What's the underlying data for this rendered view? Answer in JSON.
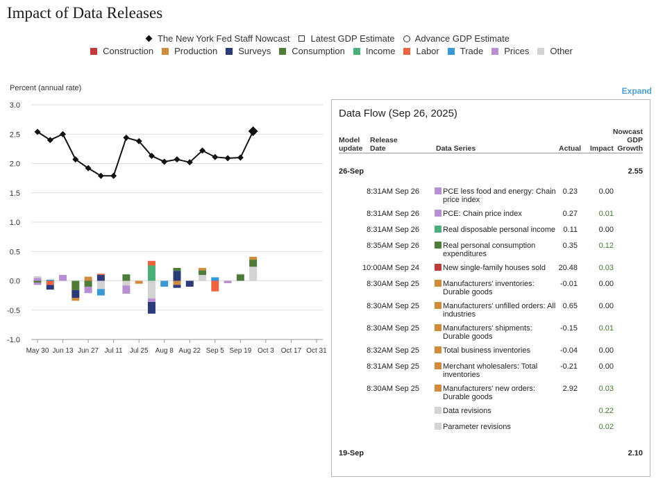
{
  "title": "Impact of Data Releases",
  "legend_markers": [
    {
      "label": "The New York Fed Staff Nowcast",
      "marker": "diamond"
    },
    {
      "label": "Latest GDP Estimate",
      "marker": "square"
    },
    {
      "label": "Advance GDP Estimate",
      "marker": "circle"
    }
  ],
  "categories": [
    {
      "label": "Construction",
      "color": "#c0393b"
    },
    {
      "label": "Production",
      "color": "#d08b3f"
    },
    {
      "label": "Surveys",
      "color": "#2b3b7a"
    },
    {
      "label": "Consumption",
      "color": "#4e7c3a"
    },
    {
      "label": "Income",
      "color": "#4cae7a"
    },
    {
      "label": "Labor",
      "color": "#ef6440"
    },
    {
      "label": "Trade",
      "color": "#3a98d6"
    },
    {
      "label": "Prices",
      "color": "#b98fd3"
    },
    {
      "label": "Other",
      "color": "#d3d3d3"
    }
  ],
  "y_axis_label": "Percent (annual rate)",
  "expand_label": "Expand",
  "chart_data": {
    "type": "bar",
    "ylim": [
      -1.0,
      3.0
    ],
    "yticks": [
      "3.0",
      "2.5",
      "2.0",
      "1.5",
      "1.0",
      "0.5",
      "0.0",
      "-0.5",
      "-1.0"
    ],
    "ytick_values": [
      3.0,
      2.5,
      2.0,
      1.5,
      1.0,
      0.5,
      0.0,
      -0.5,
      -1.0
    ],
    "xticks": [
      "May 30",
      "Jun 13",
      "Jun 27",
      "Jul 11",
      "Jul 25",
      "Aug 8",
      "Aug 22",
      "Sep 5",
      "Sep 19",
      "Oct 3",
      "Oct 17",
      "Oct 31"
    ],
    "x_weeks": [
      "May 30",
      "Jun 6",
      "Jun 13",
      "Jun 20",
      "Jun 27",
      "Jul 4",
      "Jul 11",
      "Jul 18",
      "Jul 25",
      "Aug 1",
      "Aug 8",
      "Aug 15",
      "Aug 22",
      "Aug 29",
      "Sep 5",
      "Sep 12",
      "Sep 19",
      "Sep 26",
      "Oct 3",
      "Oct 10",
      "Oct 17",
      "Oct 24",
      "Oct 31"
    ],
    "nowcast": {
      "name": "The New York Fed Staff Nowcast",
      "values": [
        2.54,
        2.4,
        2.5,
        2.07,
        1.92,
        1.79,
        1.79,
        2.44,
        2.38,
        2.13,
        2.03,
        2.07,
        2.02,
        2.22,
        2.11,
        2.09,
        2.1,
        2.55
      ]
    },
    "stacks": [
      [
        [
          "Prices",
          0.05
        ],
        [
          "Other",
          0.03
        ],
        [
          "Consumption",
          -0.03
        ],
        [
          "Prices",
          -0.04
        ]
      ],
      [
        [
          "Trade",
          0.02
        ],
        [
          "Labor",
          -0.07
        ],
        [
          "Surveys",
          -0.08
        ]
      ],
      [
        [
          "Prices",
          0.1
        ]
      ],
      [
        [
          "Consumption",
          -0.16
        ],
        [
          "Surveys",
          -0.13
        ],
        [
          "Production",
          -0.05
        ]
      ],
      [
        [
          "Production",
          0.07
        ],
        [
          "Consumption",
          -0.1
        ],
        [
          "Prices",
          -0.11
        ]
      ],
      [
        [
          "Surveys",
          0.1
        ],
        [
          "Labor",
          0.02
        ],
        [
          "Other",
          -0.14
        ],
        [
          "Trade",
          -0.11
        ]
      ],
      [],
      [
        [
          "Consumption",
          0.11
        ],
        [
          "Other",
          -0.08
        ],
        [
          "Prices",
          -0.14
        ]
      ],
      [
        [
          "Production",
          -0.05
        ]
      ],
      [
        [
          "Income",
          0.26
        ],
        [
          "Labor",
          0.08
        ],
        [
          "Other",
          -0.3
        ],
        [
          "Prices",
          -0.06
        ],
        [
          "Surveys",
          -0.2
        ]
      ],
      [
        [
          "Trade",
          -0.1
        ]
      ],
      [
        [
          "Surveys",
          0.17
        ],
        [
          "Consumption",
          0.05
        ],
        [
          "Production",
          -0.07
        ],
        [
          "Surveys",
          -0.05
        ]
      ],
      [
        [
          "Surveys",
          -0.1
        ]
      ],
      [
        [
          "Other",
          0.1
        ],
        [
          "Consumption",
          0.08
        ],
        [
          "Production",
          0.04
        ]
      ],
      [
        [
          "Trade",
          0.06
        ],
        [
          "Labor",
          -0.18
        ]
      ],
      [
        [
          "Prices",
          -0.04
        ]
      ],
      [
        [
          "Consumption",
          0.11
        ],
        [
          "Other",
          0.01
        ]
      ],
      [
        [
          "Other",
          0.24
        ],
        [
          "Consumption",
          0.12
        ],
        [
          "Production",
          0.05
        ]
      ]
    ]
  },
  "panel": {
    "title": "Data Flow (Sep 26, 2025)",
    "headers": {
      "model_update": [
        "Model",
        "update"
      ],
      "release_date": [
        "Release",
        "Date"
      ],
      "data_series": "Data Series",
      "actual": "Actual",
      "impact": "Impact",
      "growth": [
        "Nowcast",
        "GDP",
        "Growth"
      ]
    },
    "groups": [
      {
        "date": "26-Sep",
        "growth": "2.55"
      },
      {
        "date": "19-Sep",
        "growth": "2.10"
      }
    ],
    "rows": [
      {
        "time": "8:31AM Sep 26",
        "series": "PCE less food and energy: Chain price index",
        "actual": "0.23",
        "impact": "0.00",
        "cat": "Prices"
      },
      {
        "time": "8:31AM Sep 26",
        "series": "PCE: Chain price index",
        "actual": "0.27",
        "impact": "0.01",
        "cat": "Prices"
      },
      {
        "time": "8:31AM Sep 26",
        "series": "Real disposable personal income",
        "actual": "0.11",
        "impact": "0.00",
        "cat": "Income"
      },
      {
        "time": "8:35AM Sep 26",
        "series": "Real personal consumption expenditures",
        "actual": "0.35",
        "impact": "0.12",
        "cat": "Consumption"
      },
      {
        "time": "10:00AM Sep 24",
        "series": "New single-family houses sold",
        "actual": "20.48",
        "impact": "0.03",
        "cat": "Construction"
      },
      {
        "time": "8:30AM Sep 25",
        "series": "Manufacturers' inventories: Durable goods",
        "actual": "-0.01",
        "impact": "0.00",
        "cat": "Production"
      },
      {
        "time": "8:30AM Sep 25",
        "series": "Manufacturers' unfilled orders: All industries",
        "actual": "0.65",
        "impact": "0.00",
        "cat": "Production"
      },
      {
        "time": "8:30AM Sep 25",
        "series": "Manufacturers' shipments: Durable goods",
        "actual": "-0.15",
        "impact": "0.01",
        "cat": "Production"
      },
      {
        "time": "8:32AM Sep 25",
        "series": "Total business inventories",
        "actual": "-0.04",
        "impact": "0.00",
        "cat": "Production"
      },
      {
        "time": "8:31AM Sep 25",
        "series": "Merchant wholesalers: Total inventories",
        "actual": "-0.21",
        "impact": "0.00",
        "cat": "Production"
      },
      {
        "time": "8:30AM Sep 25",
        "series": "Manufacturers' new orders: Durable goods",
        "actual": "2.92",
        "impact": "0.03",
        "cat": "Production"
      },
      {
        "time": "",
        "series": "Data revisions",
        "actual": "",
        "impact": "0.22",
        "cat": "Other"
      },
      {
        "time": "",
        "series": "Parameter revisions",
        "actual": "",
        "impact": "0.02",
        "cat": "Other"
      }
    ]
  }
}
